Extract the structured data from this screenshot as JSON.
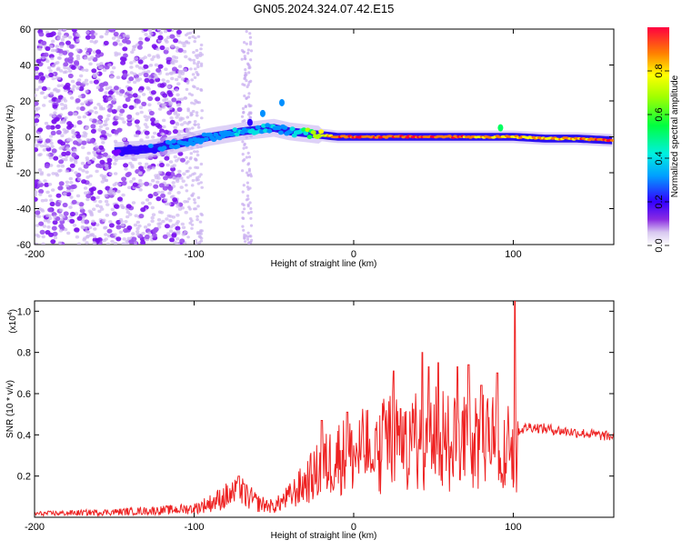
{
  "title": "GN05.2024.324.07.42.E15",
  "chart_data": [
    {
      "type": "heatmap",
      "name": "spectrogram",
      "xlabel": "Height of straight line (km)",
      "ylabel": "Frequency (Hz)",
      "xlim": [
        -200,
        163
      ],
      "ylim": [
        -60,
        60
      ],
      "x_ticks": [
        -200,
        -100,
        0,
        100
      ],
      "y_ticks": [
        -60,
        -40,
        -20,
        0,
        20,
        40,
        60
      ],
      "colorbar": {
        "label": "Normalized spectral amplitude",
        "range": [
          0,
          1
        ],
        "ticks": [
          0,
          0.2,
          0.4,
          0.6,
          0.8
        ]
      },
      "ridge": {
        "x": [
          -150,
          -130,
          -110,
          -90,
          -70,
          -50,
          -40,
          -30,
          -20,
          -10,
          0,
          20,
          40,
          60,
          80,
          92,
          100,
          120,
          140,
          163
        ],
        "freq": [
          -8,
          -7,
          -4,
          0,
          3,
          5,
          3,
          2,
          1,
          0,
          0,
          0,
          0,
          0,
          0,
          0,
          0,
          -1,
          -1,
          -2
        ],
        "amplitude": [
          0.2,
          0.3,
          0.35,
          0.4,
          0.45,
          0.45,
          0.45,
          0.6,
          0.8,
          0.95,
          0.98,
          0.97,
          0.96,
          0.95,
          0.9,
          0.9,
          0.85,
          0.85,
          0.9,
          0.95
        ]
      }
    },
    {
      "type": "line",
      "name": "snr",
      "xlabel": "Height of straight line (km)",
      "ylabel": "SNR (10 * v/v)",
      "y_scale_label": "(x10",
      "y_scale_exp": "4",
      "xlim": [
        -200,
        163
      ],
      "ylim": [
        0,
        1.05
      ],
      "x_ticks": [
        -200,
        -100,
        0,
        100
      ],
      "y_ticks": [
        0.2,
        0.4,
        0.6,
        0.8,
        1.0
      ],
      "envelope_x": [
        -200,
        -150,
        -120,
        -100,
        -90,
        -80,
        -70,
        -60,
        -50,
        -40,
        -30,
        -20,
        -10,
        0,
        10,
        20,
        25,
        30,
        40,
        50,
        60,
        70,
        80,
        90,
        95,
        100,
        103,
        110,
        130,
        163
      ],
      "envelope_y": [
        0.02,
        0.03,
        0.04,
        0.05,
        0.08,
        0.12,
        0.14,
        0.08,
        0.06,
        0.12,
        0.2,
        0.28,
        0.35,
        0.35,
        0.4,
        0.55,
        0.6,
        0.55,
        0.55,
        0.6,
        0.58,
        0.58,
        0.55,
        0.55,
        0.5,
        0.55,
        0.42,
        0.44,
        0.42,
        0.39
      ],
      "spikes": [
        {
          "x": -72,
          "y": 0.2
        },
        {
          "x": -20,
          "y": 0.47
        },
        {
          "x": -4,
          "y": 0.51
        },
        {
          "x": 25,
          "y": 0.71
        },
        {
          "x": 43,
          "y": 0.8
        },
        {
          "x": 47,
          "y": 0.73
        },
        {
          "x": 53,
          "y": 0.75
        },
        {
          "x": 65,
          "y": 0.73
        },
        {
          "x": 72,
          "y": 0.74
        },
        {
          "x": 80,
          "y": 0.64
        },
        {
          "x": 90,
          "y": 0.7
        },
        {
          "x": 101,
          "y": 1.05
        }
      ]
    }
  ]
}
